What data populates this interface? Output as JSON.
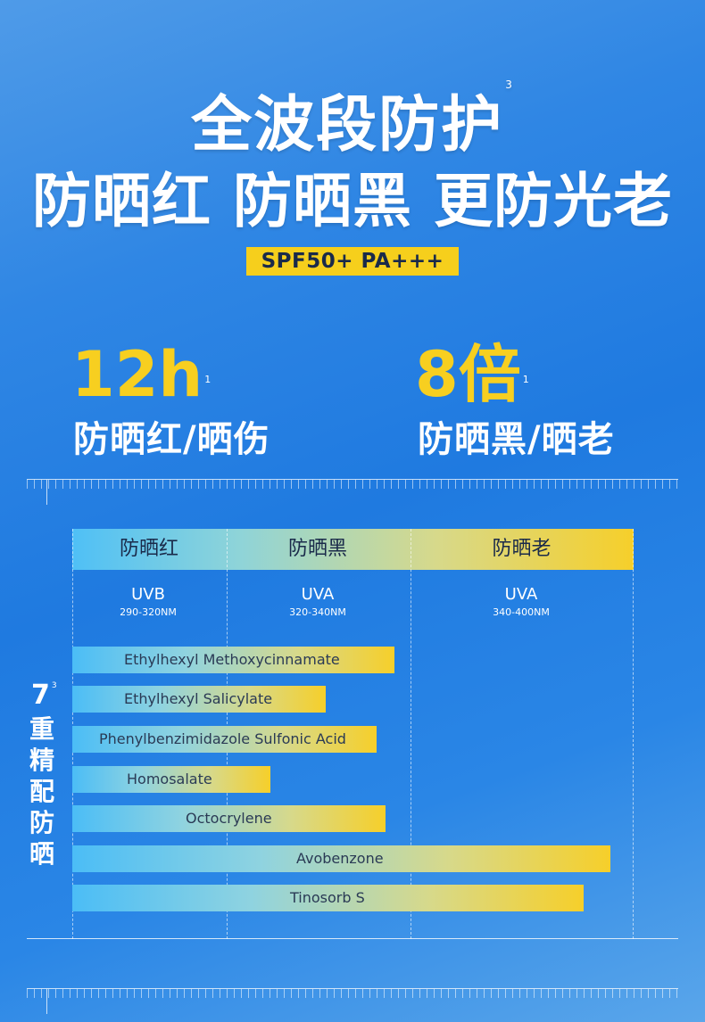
{
  "headline": {
    "line1": "全波段防护",
    "line1_sup": "3",
    "line2": "防晒红 防晒黑 更防光老"
  },
  "badge": "SPF50+  PA+++",
  "stats": [
    {
      "number": "12h",
      "sup": "1",
      "label": "防晒红/晒伤"
    },
    {
      "number": "8倍",
      "sup": "1",
      "label": "防晒黑/晒老"
    }
  ],
  "chart": {
    "headers": [
      "防晒红",
      "防晒黑",
      "防晒老"
    ],
    "bands": [
      {
        "title": "UVB",
        "range": "290-320NM"
      },
      {
        "title": "UVA",
        "range": "320-340NM"
      },
      {
        "title": "UVA",
        "range": "340-400NM"
      }
    ],
    "ingredients": [
      {
        "name": "Ethylhexyl Methoxycinnamate"
      },
      {
        "name": "Ethylhexyl Salicylate"
      },
      {
        "name": "Phenylbenzimidazole Sulfonic Acid"
      },
      {
        "name": "Homosalate"
      },
      {
        "name": "Octocrylene"
      },
      {
        "name": "Avobenzone"
      },
      {
        "name": "Tinosorb S"
      }
    ]
  },
  "side_label": {
    "number": "7",
    "sup": "3",
    "chars": [
      "重",
      "精",
      "配",
      "防",
      "晒"
    ]
  },
  "colors": {
    "accent_yellow": "#f6cf1c",
    "bar_start": "#4bbdf6",
    "bar_end": "#f6cf2a"
  }
}
